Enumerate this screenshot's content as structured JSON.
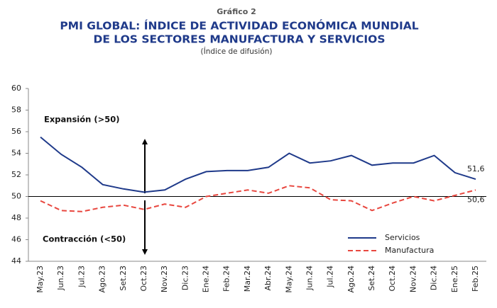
{
  "chart_data": {
    "type": "line",
    "supertitle": "Gráfico 2",
    "title": [
      "PMI GLOBAL: ÍNDICE DE ACTIVIDAD ECONÓMICA MUNDIAL",
      "DE LOS SECTORES MANUFACTURA Y SERVICIOS"
    ],
    "subtitle": "(Índice de difusión)",
    "annotations": [
      "Expansión (>50)",
      "Contracción (<50)"
    ],
    "categories": [
      "May.23",
      "Jun.23",
      "Jul.23",
      "Ago.23",
      "Set.23",
      "Oct.23",
      "Nov.23",
      "Dic.23",
      "Ene.24",
      "Feb.24",
      "Mar.24",
      "Abr.24",
      "May.24",
      "Jun.24",
      "Jul.24",
      "Ago.24",
      "Set.24",
      "Oct.24",
      "Nov.24",
      "Dic.24",
      "Ene.25",
      "Feb.25"
    ],
    "series": [
      {
        "name": "Servicios",
        "color": "#1f3a8a",
        "dash": false,
        "values": [
          55.5,
          53.9,
          52.7,
          51.1,
          50.7,
          50.4,
          50.6,
          51.6,
          52.3,
          52.4,
          52.4,
          52.7,
          54.0,
          53.1,
          53.3,
          53.8,
          52.9,
          53.1,
          53.1,
          53.8,
          52.2,
          51.6
        ],
        "value_labels": [
          null,
          null,
          null,
          null,
          null,
          null,
          null,
          null,
          null,
          null,
          null,
          null,
          null,
          null,
          null,
          null,
          null,
          null,
          null,
          null,
          null,
          "51,6"
        ]
      },
      {
        "name": "Manufactura",
        "color": "#e8473f",
        "dash": true,
        "values": [
          49.6,
          48.7,
          48.6,
          49.0,
          49.2,
          48.8,
          49.3,
          49.0,
          50.0,
          50.3,
          50.6,
          50.3,
          51.0,
          50.8,
          49.7,
          49.6,
          48.7,
          49.4,
          50.0,
          49.6,
          50.1,
          50.6
        ],
        "value_labels": [
          null,
          null,
          null,
          null,
          null,
          null,
          null,
          null,
          null,
          null,
          null,
          null,
          null,
          null,
          null,
          null,
          null,
          null,
          null,
          null,
          null,
          "50,6"
        ]
      }
    ],
    "reference_line": 50,
    "ylim": [
      44,
      60
    ],
    "yticks": [
      44,
      46,
      48,
      50,
      52,
      54,
      56,
      58,
      60
    ]
  }
}
